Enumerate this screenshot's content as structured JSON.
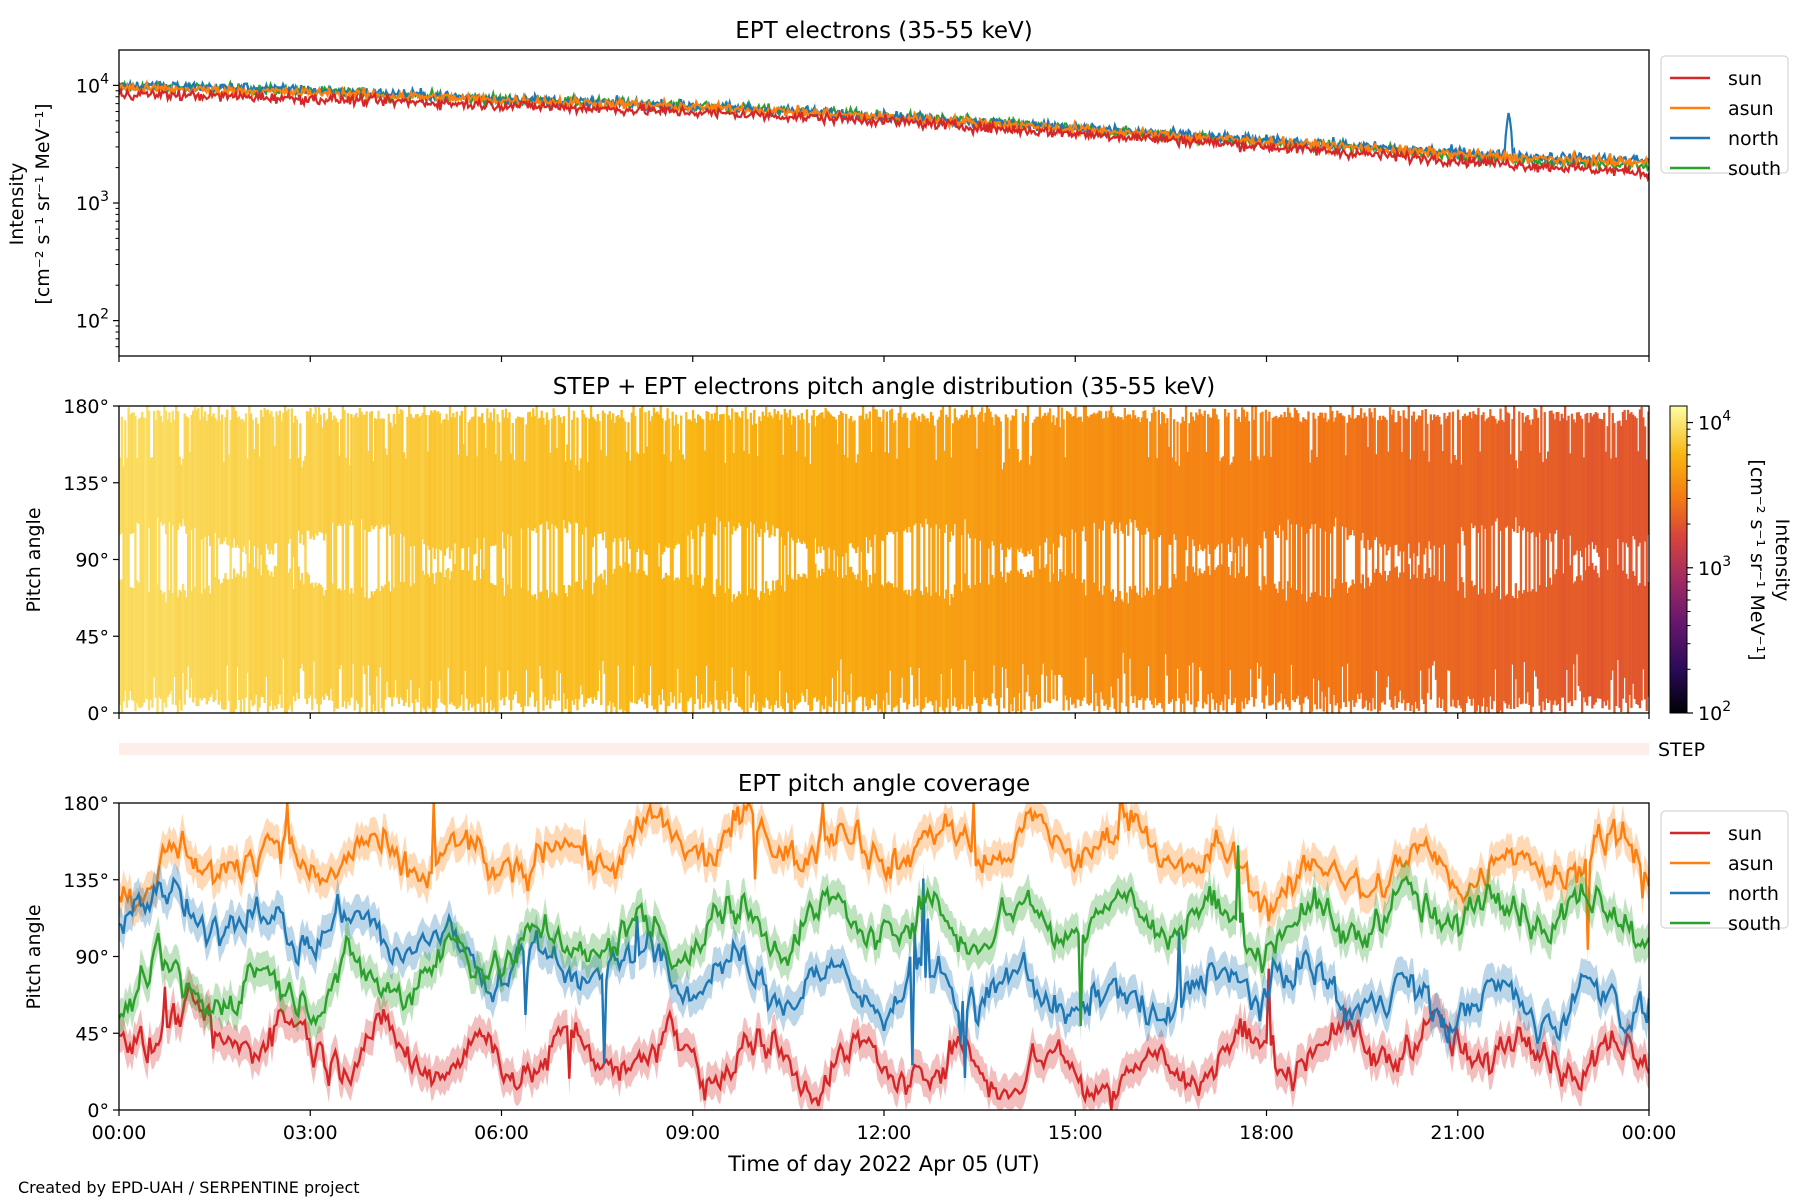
{
  "footer": "Created by EPD-UAH / SERPENTINE project",
  "xaxis": {
    "label": "Time of day 2022 Apr 05 (UT)",
    "range_hours": [
      0,
      24
    ],
    "ticks": [
      {
        "value": 0,
        "label": "00:00"
      },
      {
        "value": 3,
        "label": "03:00"
      },
      {
        "value": 6,
        "label": "06:00"
      },
      {
        "value": 9,
        "label": "09:00"
      },
      {
        "value": 12,
        "label": "12:00"
      },
      {
        "value": 15,
        "label": "15:00"
      },
      {
        "value": 18,
        "label": "18:00"
      },
      {
        "value": 21,
        "label": "21:00"
      },
      {
        "value": 24,
        "label": "00:00"
      }
    ]
  },
  "colors": {
    "sun": "#d62728",
    "asun": "#ff7f0e",
    "north": "#1f77b4",
    "south": "#2ca02c"
  },
  "chart_data": [
    {
      "type": "line",
      "title": "EPT electrons (35-55 keV)",
      "ylabel": "Intensity",
      "yunits": "[cm⁻² s⁻¹ sr⁻¹ MeV⁻¹]",
      "yscale": "log",
      "ylim": [
        50,
        20000
      ],
      "yticks": [
        {
          "value": 100,
          "base": "10",
          "exp": "2"
        },
        {
          "value": 1000,
          "base": "10",
          "exp": "3"
        },
        {
          "value": 10000,
          "base": "10",
          "exp": "4"
        }
      ],
      "legend": "upper-right-outside",
      "series": [
        {
          "name": "sun",
          "color": "#d62728",
          "x": [
            0,
            2,
            4,
            6,
            8,
            10,
            12,
            14,
            16,
            18,
            20,
            22,
            24
          ],
          "y": [
            8500,
            8000,
            7400,
            6800,
            6200,
            5600,
            5000,
            4200,
            3600,
            3000,
            2500,
            2100,
            1800
          ]
        },
        {
          "name": "asun",
          "color": "#ff7f0e",
          "x": [
            0,
            2,
            4,
            6,
            8,
            10,
            12,
            14,
            16,
            18,
            20,
            22,
            24
          ],
          "y": [
            9500,
            9000,
            8300,
            7500,
            6900,
            6200,
            5400,
            4600,
            3900,
            3300,
            2800,
            2400,
            2200
          ]
        },
        {
          "name": "north",
          "color": "#1f77b4",
          "x": [
            0,
            2,
            4,
            6,
            8,
            10,
            12,
            14,
            16,
            18,
            20,
            22,
            24
          ],
          "y": [
            10000,
            9500,
            8600,
            7700,
            7000,
            6300,
            5500,
            4700,
            4000,
            3400,
            2900,
            2500,
            2300
          ]
        },
        {
          "name": "south",
          "color": "#2ca02c",
          "x": [
            0,
            2,
            4,
            6,
            8,
            10,
            12,
            14,
            16,
            18,
            20,
            22,
            24
          ],
          "y": [
            9800,
            9300,
            8500,
            7600,
            7000,
            6300,
            5500,
            4700,
            3900,
            3300,
            2800,
            2300,
            2100
          ]
        }
      ],
      "annotations": [
        {
          "series": "north",
          "x": 21.8,
          "y": 6000
        }
      ]
    },
    {
      "type": "heatmap",
      "title": "STEP + EPT electrons pitch angle distribution (35-55 keV)",
      "ylabel": "Pitch angle",
      "yticks": [
        "0°",
        "45°",
        "90°",
        "135°",
        "180°"
      ],
      "ylim": [
        0,
        180
      ],
      "colorbar": {
        "label": "Intensity",
        "units": "[cm⁻² s⁻¹ sr⁻¹ MeV⁻¹]",
        "scale": "log",
        "range": [
          100,
          13000
        ],
        "ticks": [
          {
            "value": 100,
            "base": "10",
            "exp": "2"
          },
          {
            "value": 1000,
            "base": "10",
            "exp": "3"
          },
          {
            "value": 10000,
            "base": "10",
            "exp": "4"
          }
        ]
      },
      "intensity_trend": {
        "x": [
          0,
          3,
          6,
          9,
          12,
          15,
          18,
          21,
          24
        ],
        "y": [
          9000,
          8000,
          6900,
          6000,
          5000,
          4000,
          3100,
          2400,
          2000
        ]
      }
    },
    {
      "type": "strip",
      "label": "STEP",
      "color": "#fdeee9"
    },
    {
      "type": "line",
      "title": "EPT pitch angle coverage",
      "ylabel": "Pitch angle",
      "yticks": [
        "0°",
        "45°",
        "90°",
        "135°",
        "180°"
      ],
      "ylim": [
        0,
        180
      ],
      "legend": "upper-right-outside",
      "series": [
        {
          "name": "sun",
          "color": "#d62728",
          "x": [
            0,
            2,
            4,
            6,
            8,
            10,
            12,
            14,
            16,
            18,
            20,
            22,
            24
          ],
          "y": [
            50,
            45,
            35,
            30,
            35,
            30,
            25,
            25,
            20,
            35,
            40,
            35,
            30
          ]
        },
        {
          "name": "asun",
          "color": "#ff7f0e",
          "x": [
            0,
            2,
            4,
            6,
            8,
            10,
            12,
            14,
            16,
            18,
            20,
            22,
            24
          ],
          "y": [
            135,
            150,
            145,
            145,
            155,
            160,
            155,
            155,
            160,
            130,
            140,
            145,
            150
          ]
        },
        {
          "name": "north",
          "color": "#1f77b4",
          "x": [
            0,
            2,
            4,
            6,
            8,
            10,
            12,
            14,
            16,
            18,
            20,
            22,
            24
          ],
          "y": [
            120,
            110,
            105,
            85,
            85,
            75,
            70,
            70,
            60,
            80,
            65,
            60,
            65
          ]
        },
        {
          "name": "south",
          "color": "#2ca02c",
          "x": [
            0,
            2,
            4,
            6,
            8,
            10,
            12,
            14,
            16,
            18,
            20,
            22,
            24
          ],
          "y": [
            70,
            70,
            75,
            95,
            100,
            110,
            110,
            110,
            115,
            105,
            115,
            120,
            115
          ]
        }
      ]
    }
  ]
}
